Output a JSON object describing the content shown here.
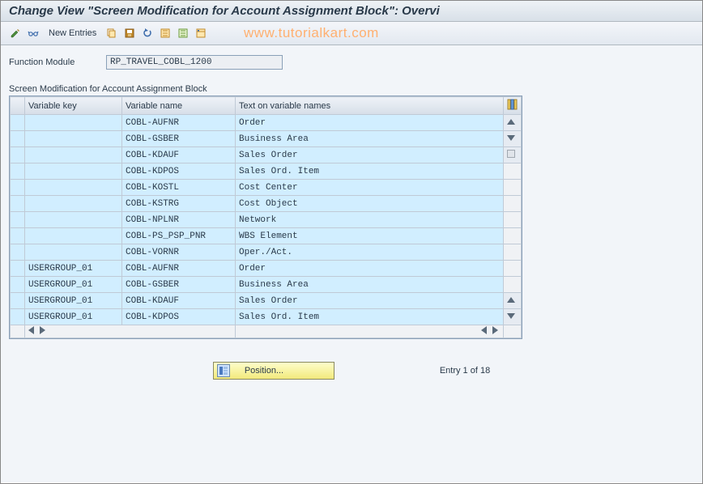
{
  "title": "Change View \"Screen Modification for Account Assignment Block\": Overvi",
  "toolbar": {
    "new_entries_label": "New Entries"
  },
  "watermark": "www.tutorialkart.com",
  "function_module": {
    "label": "Function Module",
    "value": "RP_TRAVEL_COBL_1200"
  },
  "table": {
    "title": "Screen Modification for Account Assignment Block",
    "columns": {
      "variable_key": "Variable key",
      "variable_name": "Variable name",
      "text": "Text on variable names"
    },
    "rows": [
      {
        "key": "",
        "name": "COBL-AUFNR",
        "text": "Order"
      },
      {
        "key": "",
        "name": "COBL-GSBER",
        "text": "Business Area"
      },
      {
        "key": "",
        "name": "COBL-KDAUF",
        "text": "Sales Order"
      },
      {
        "key": "",
        "name": "COBL-KDPOS",
        "text": "Sales Ord. Item"
      },
      {
        "key": "",
        "name": "COBL-KOSTL",
        "text": "Cost Center"
      },
      {
        "key": "",
        "name": "COBL-KSTRG",
        "text": "Cost Object"
      },
      {
        "key": "",
        "name": "COBL-NPLNR",
        "text": "Network"
      },
      {
        "key": "",
        "name": "COBL-PS_PSP_PNR",
        "text": "WBS Element"
      },
      {
        "key": "",
        "name": "COBL-VORNR",
        "text": "Oper./Act."
      },
      {
        "key": "USERGROUP_01",
        "name": "COBL-AUFNR",
        "text": "Order"
      },
      {
        "key": "USERGROUP_01",
        "name": "COBL-GSBER",
        "text": "Business Area"
      },
      {
        "key": "USERGROUP_01",
        "name": "COBL-KDAUF",
        "text": "Sales Order"
      },
      {
        "key": "USERGROUP_01",
        "name": "COBL-KDPOS",
        "text": "Sales Ord. Item"
      }
    ]
  },
  "footer": {
    "position_label": "Position...",
    "entry_info": "Entry 1 of 18"
  },
  "colors": {
    "row_bg": "#d1eeff",
    "header_grad_top": "#eef2f7",
    "header_grad_bot": "#d6dee8",
    "border": "#8aa0b8"
  }
}
